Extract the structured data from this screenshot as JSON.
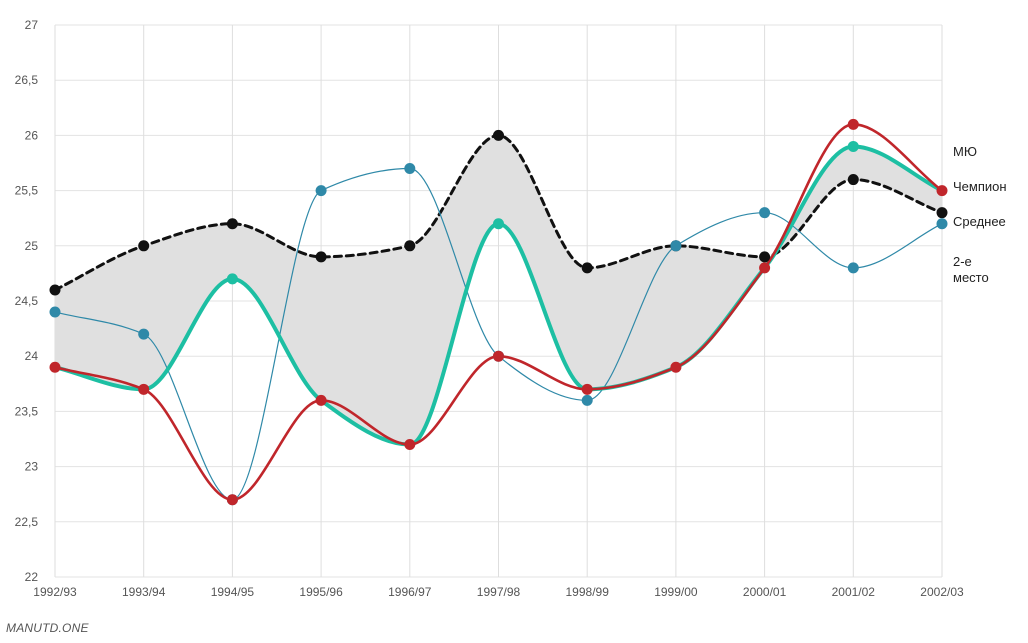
{
  "chart_data": {
    "type": "line",
    "categories": [
      "1992/93",
      "1993/94",
      "1994/95",
      "1995/96",
      "1996/97",
      "1997/98",
      "1998/99",
      "1999/00",
      "2000/01",
      "2001/02",
      "2002/03"
    ],
    "ylim": [
      22,
      27
    ],
    "yticks": [
      22,
      22.5,
      23,
      23.5,
      24,
      24.5,
      25,
      25.5,
      26,
      26.5,
      27
    ],
    "ytick_labels": [
      "22",
      "22,5",
      "23",
      "23,5",
      "24",
      "24,5",
      "25",
      "25,5",
      "26",
      "26,5",
      "27"
    ],
    "grid": true,
    "legend": "right",
    "shaded_band": {
      "between": [
        "Среднее",
        "МЮ"
      ],
      "color": "#e0e0e0"
    },
    "series": [
      {
        "name": "Среднее",
        "color": "#111111",
        "style": "dashed",
        "values": [
          24.6,
          25.0,
          25.2,
          24.9,
          25.0,
          26.0,
          24.8,
          25.0,
          24.9,
          25.6,
          25.3
        ]
      },
      {
        "name": "2-е место",
        "color": "#2f89a8",
        "style": "thin",
        "values": [
          24.4,
          24.2,
          22.7,
          25.5,
          25.7,
          24.0,
          23.6,
          25.0,
          25.3,
          24.8,
          25.2
        ]
      },
      {
        "name": "МЮ",
        "color": "#1dbfa3",
        "style": "thick",
        "values": [
          23.9,
          23.7,
          24.7,
          23.6,
          23.2,
          25.2,
          23.7,
          23.9,
          24.8,
          25.9,
          25.5
        ]
      },
      {
        "name": "Чемпион",
        "color": "#c0262b",
        "style": "medium",
        "values": [
          23.9,
          23.7,
          22.7,
          23.6,
          23.2,
          24.0,
          23.7,
          23.9,
          24.8,
          26.1,
          25.5
        ]
      }
    ],
    "legend_entries": [
      {
        "lines": [
          "МЮ"
        ]
      },
      {
        "lines": [
          "Чемпион"
        ]
      },
      {
        "lines": [
          "Среднее"
        ]
      },
      {
        "lines": [
          "2-е",
          "место"
        ]
      }
    ]
  },
  "source_label": "MANUTD.ONE"
}
